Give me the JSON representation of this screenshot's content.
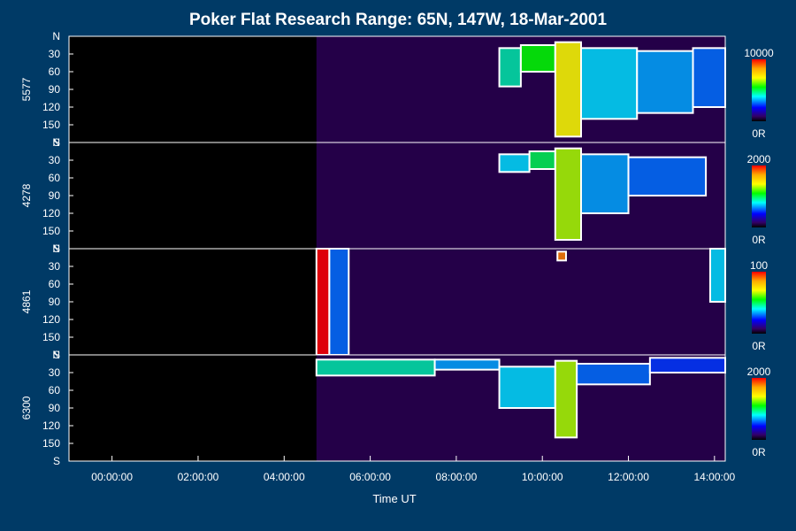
{
  "chart_data": {
    "type": "heatmap",
    "title": "Poker Flat Research Range: 65N, 147W, 18-Mar-2001",
    "xlabel": "Time UT",
    "x_ticks": [
      "00:00:00",
      "02:00:00",
      "04:00:00",
      "06:00:00",
      "08:00:00",
      "10:00:00",
      "12:00:00",
      "14:00:00"
    ],
    "x_range_hours": [
      -1.0,
      14.25
    ],
    "x_tick_hours": [
      0,
      2,
      4,
      6,
      8,
      10,
      12,
      14
    ],
    "y_range_deg": [
      0,
      180
    ],
    "y_ticks": [
      "N",
      "30",
      "60",
      "90",
      "120",
      "150",
      "S"
    ],
    "y_tick_values": [
      0,
      30,
      60,
      90,
      120,
      150,
      180
    ],
    "colors": {
      "background": "#003a66",
      "plot_bg": "#000000",
      "frame": "#ffffff",
      "contour": "#ffffff",
      "colorbar": [
        "#ff0000",
        "#ffaa00",
        "#ffff00",
        "#00ff00",
        "#00ffff",
        "#0000ff",
        "#330066",
        "#000000"
      ]
    },
    "data_start_hour": 4.75,
    "panels": [
      {
        "label": "5577",
        "colorbar_max": "10000",
        "colorbar_min": "0R",
        "activity": [
          {
            "start": 9.0,
            "end": 9.5,
            "top": 20,
            "bottom": 85,
            "level": 0.55
          },
          {
            "start": 9.5,
            "end": 10.3,
            "top": 15,
            "bottom": 60,
            "level": 0.65
          },
          {
            "start": 10.3,
            "end": 10.9,
            "top": 10,
            "bottom": 170,
            "level": 0.8
          },
          {
            "start": 10.9,
            "end": 12.2,
            "top": 20,
            "bottom": 140,
            "level": 0.5
          },
          {
            "start": 12.2,
            "end": 13.5,
            "top": 25,
            "bottom": 130,
            "level": 0.45
          },
          {
            "start": 13.5,
            "end": 14.25,
            "top": 20,
            "bottom": 120,
            "level": 0.4
          }
        ]
      },
      {
        "label": "4278",
        "colorbar_max": "2000",
        "colorbar_min": "0R",
        "activity": [
          {
            "start": 9.0,
            "end": 9.7,
            "top": 20,
            "bottom": 50,
            "level": 0.5
          },
          {
            "start": 9.7,
            "end": 10.3,
            "top": 15,
            "bottom": 45,
            "level": 0.6
          },
          {
            "start": 10.3,
            "end": 10.9,
            "top": 10,
            "bottom": 165,
            "level": 0.75
          },
          {
            "start": 10.9,
            "end": 12.0,
            "top": 20,
            "bottom": 120,
            "level": 0.45
          },
          {
            "start": 12.0,
            "end": 13.8,
            "top": 25,
            "bottom": 90,
            "level": 0.4
          }
        ]
      },
      {
        "label": "4861",
        "colorbar_max": "100",
        "colorbar_min": "0R",
        "activity": [
          {
            "start": 4.75,
            "end": 5.05,
            "top": 0,
            "bottom": 180,
            "level": 1.0
          },
          {
            "start": 5.05,
            "end": 5.5,
            "top": 0,
            "bottom": 180,
            "level": 0.4
          },
          {
            "start": 10.35,
            "end": 10.55,
            "top": 5,
            "bottom": 20,
            "level": 0.9
          },
          {
            "start": 13.9,
            "end": 14.25,
            "top": 0,
            "bottom": 90,
            "level": 0.5
          }
        ]
      },
      {
        "label": "6300",
        "colorbar_max": "2000",
        "colorbar_min": "0R",
        "activity": [
          {
            "start": 4.75,
            "end": 7.5,
            "top": 8,
            "bottom": 35,
            "level": 0.55
          },
          {
            "start": 7.5,
            "end": 9.0,
            "top": 8,
            "bottom": 25,
            "level": 0.45
          },
          {
            "start": 9.0,
            "end": 10.3,
            "top": 20,
            "bottom": 90,
            "level": 0.5
          },
          {
            "start": 10.3,
            "end": 10.8,
            "top": 10,
            "bottom": 140,
            "level": 0.75
          },
          {
            "start": 10.8,
            "end": 12.5,
            "top": 15,
            "bottom": 50,
            "level": 0.4
          },
          {
            "start": 12.5,
            "end": 14.25,
            "top": 5,
            "bottom": 30,
            "level": 0.35
          }
        ]
      }
    ]
  }
}
